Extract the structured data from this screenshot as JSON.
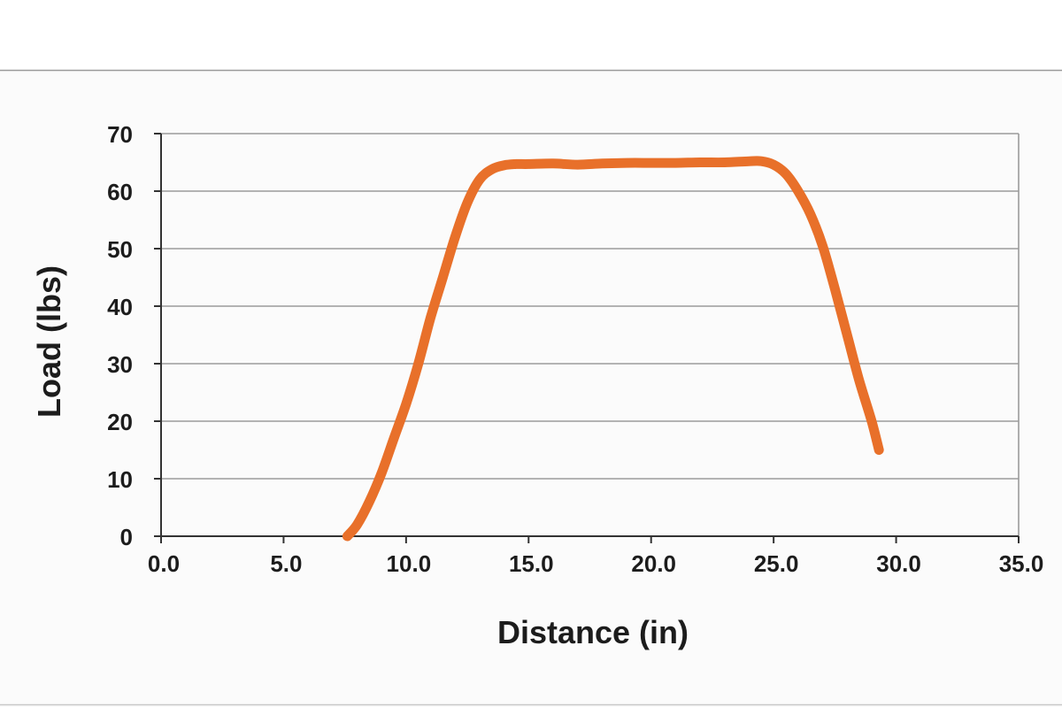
{
  "colors": {
    "background": "#ffffff",
    "panel": "#fbfbfb",
    "frame_line": "#9a9a9a",
    "gridline": "#9b9b9b",
    "axis": "#333333",
    "series_line": "#e8702a",
    "text": "#1c1c1c"
  },
  "chart_data": {
    "type": "line",
    "title": "",
    "xlabel": "Distance (in)",
    "ylabel": "Load (lbs)",
    "xlim": [
      0,
      35
    ],
    "ylim": [
      0,
      70
    ],
    "xticks": [
      "0.0",
      "5.0",
      "10.0",
      "15.0",
      "20.0",
      "25.0",
      "30.0",
      "35.0"
    ],
    "yticks": [
      "0",
      "10",
      "20",
      "30",
      "40",
      "50",
      "60",
      "70"
    ],
    "grid": "horizontal",
    "legend": "none",
    "series": [
      {
        "x": [
          7.6,
          8.0,
          8.5,
          9.0,
          9.5,
          10.0,
          10.5,
          11.0,
          11.5,
          12.0,
          12.5,
          13.0,
          13.5,
          14.0,
          14.5,
          15.0,
          16.0,
          17.0,
          18.0,
          19.0,
          20.0,
          21.0,
          22.0,
          23.0,
          24.0,
          24.5,
          25.0,
          25.5,
          26.0,
          26.5,
          27.0,
          27.5,
          28.0,
          28.5,
          29.0,
          29.3
        ],
        "y": [
          0,
          2,
          6,
          11,
          17,
          23,
          30,
          38,
          45,
          52,
          58,
          62,
          63.8,
          64.5,
          64.7,
          64.7,
          64.8,
          64.6,
          64.8,
          64.9,
          64.9,
          64.9,
          65.0,
          65.0,
          65.2,
          65.2,
          64.6,
          63.0,
          60.0,
          56.0,
          50.5,
          43.0,
          35.0,
          27.0,
          20.0,
          15.0
        ]
      }
    ]
  }
}
